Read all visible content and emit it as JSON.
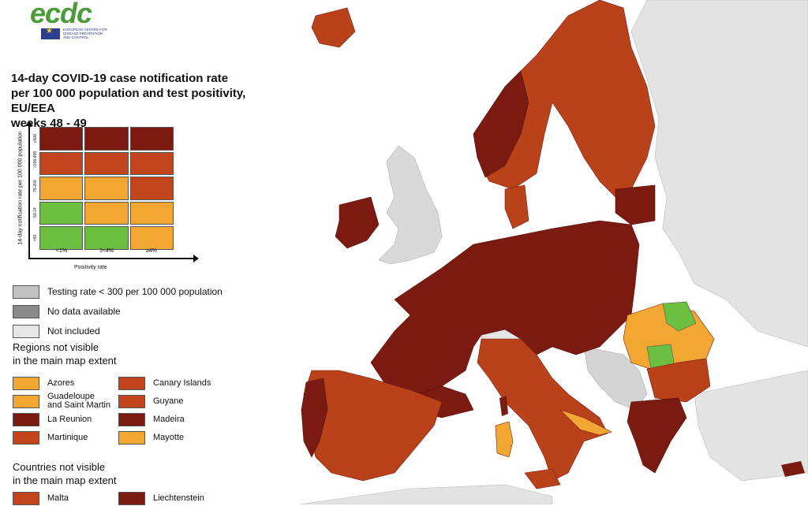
{
  "logo": {
    "text": "ecdc",
    "subtitle": "EUROPEAN CENTRE FOR DISEASE PREVENTION AND CONTROL"
  },
  "title_lines": [
    "14-day COVID-19 case notification rate",
    "per 100 000 population and test positivity, EU/EEA",
    "weeks 48 - 49"
  ],
  "colors": {
    "dark_red": "#7b1a11",
    "red": "#c1441c",
    "orange": "#f2a733",
    "green": "#6cbf3f",
    "grey_testing": "#c2c2c2",
    "grey_nodata": "#8a8a8a",
    "grey_notincluded": "#e6e6e6",
    "sea": "#ffffff"
  },
  "matrix": {
    "ylabel": "14-day notification rate per 100 000 population",
    "xlabel": "Positivity rate",
    "y_ticks": [
      "≥500",
      ">200-499",
      "75-200",
      "50-74",
      "<50"
    ],
    "x_ticks": [
      "<1%",
      "1<4%",
      "≥4%"
    ],
    "rows": [
      [
        "dark_red",
        "dark_red",
        "dark_red"
      ],
      [
        "red",
        "red",
        "red"
      ],
      [
        "orange",
        "orange",
        "red"
      ],
      [
        "green",
        "orange",
        "orange"
      ],
      [
        "green",
        "green",
        "orange"
      ]
    ]
  },
  "legend": [
    {
      "label": "Testing rate < 300 per 100 000 population",
      "color": "grey_testing"
    },
    {
      "label": "No data available",
      "color": "grey_nodata"
    },
    {
      "label": "Not included",
      "color": "grey_notincluded"
    }
  ],
  "regions": {
    "title_lines": [
      "Regions not visible",
      "in the main map extent"
    ],
    "items": [
      {
        "label": "Azores",
        "color": "orange"
      },
      {
        "label": "Canary Islands",
        "color": "red"
      },
      {
        "label": "Guadeloupe\nand Saint Martin",
        "color": "orange"
      },
      {
        "label": "Guyane",
        "color": "red"
      },
      {
        "label": "La Reunion",
        "color": "dark_red"
      },
      {
        "label": "Madeira",
        "color": "dark_red"
      },
      {
        "label": "Martinique",
        "color": "red"
      },
      {
        "label": "Mayotte",
        "color": "orange"
      }
    ]
  },
  "countries": {
    "title_lines": [
      "Countries not visible",
      "in the main map extent"
    ],
    "items": [
      {
        "label": "Malta",
        "color": "red"
      },
      {
        "label": "Liechtenstein",
        "color": "dark_red"
      }
    ]
  }
}
